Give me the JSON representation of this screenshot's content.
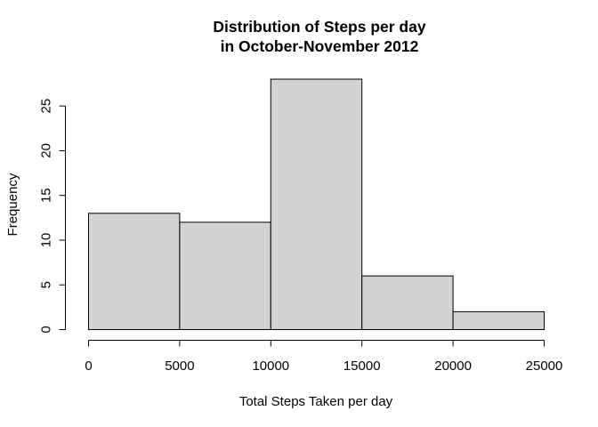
{
  "chart_data": {
    "type": "bar",
    "histogram": true,
    "title_lines": [
      "Distribution of Steps per day",
      "in October-November 2012"
    ],
    "xlabel": "Total Steps Taken per day",
    "ylabel": "Frequency",
    "bins": [
      {
        "start": 0,
        "end": 5000,
        "value": 13
      },
      {
        "start": 5000,
        "end": 10000,
        "value": 12
      },
      {
        "start": 10000,
        "end": 15000,
        "value": 28
      },
      {
        "start": 15000,
        "end": 20000,
        "value": 6
      },
      {
        "start": 20000,
        "end": 25000,
        "value": 2
      }
    ],
    "xlim": [
      0,
      25000
    ],
    "ylim": [
      0,
      28
    ],
    "x_ticks": [
      0,
      5000,
      10000,
      15000,
      20000,
      25000
    ],
    "y_ticks": [
      0,
      5,
      10,
      15,
      20,
      25
    ],
    "bar_color": "#d3d3d3",
    "edge_color": "#000000",
    "grid": false,
    "legend": "none"
  }
}
